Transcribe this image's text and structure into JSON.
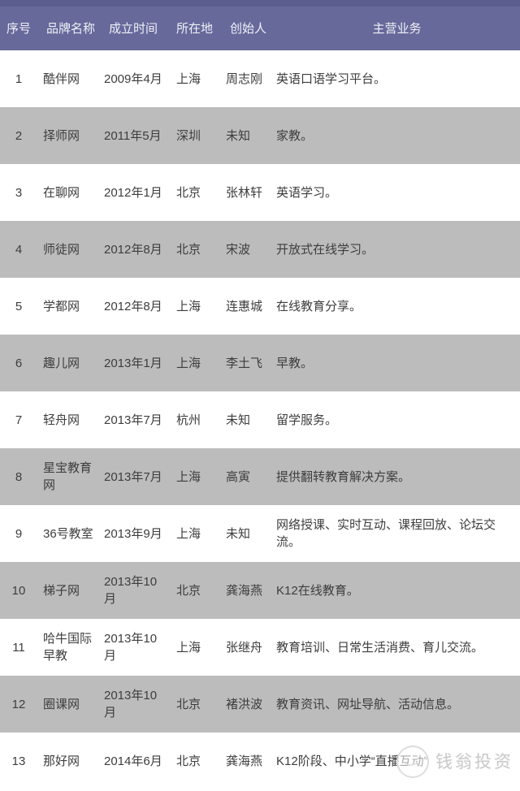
{
  "table": {
    "columns": [
      {
        "key": "index",
        "label": "序号"
      },
      {
        "key": "brand",
        "label": "品牌名称"
      },
      {
        "key": "founded",
        "label": "成立时间"
      },
      {
        "key": "location",
        "label": "所在地"
      },
      {
        "key": "founder",
        "label": "创始人"
      },
      {
        "key": "business",
        "label": "主营业务"
      }
    ],
    "rows": [
      {
        "index": "1",
        "brand": "酷伴网",
        "founded": "2009年4月",
        "location": "上海",
        "founder": "周志刚",
        "business": "英语口语学习平台。"
      },
      {
        "index": "2",
        "brand": "择师网",
        "founded": "2011年5月",
        "location": "深圳",
        "founder": "未知",
        "business": "家教。"
      },
      {
        "index": "3",
        "brand": "在聊网",
        "founded": "2012年1月",
        "location": "北京",
        "founder": "张林轩",
        "business": "英语学习。"
      },
      {
        "index": "4",
        "brand": "师徒网",
        "founded": "2012年8月",
        "location": "北京",
        "founder": "宋波",
        "business": "开放式在线学习。"
      },
      {
        "index": "5",
        "brand": "学都网",
        "founded": "2012年8月",
        "location": "上海",
        "founder": "连惠城",
        "business": "在线教育分享。"
      },
      {
        "index": "6",
        "brand": "趣儿网",
        "founded": "2013年1月",
        "location": "上海",
        "founder": "李土飞",
        "business": "早教。"
      },
      {
        "index": "7",
        "brand": "轻舟网",
        "founded": "2013年7月",
        "location": "杭州",
        "founder": "未知",
        "business": "留学服务。"
      },
      {
        "index": "8",
        "brand": "星宝教育网",
        "founded": "2013年7月",
        "location": "上海",
        "founder": "高寅",
        "business": "提供翻转教育解决方案。"
      },
      {
        "index": "9",
        "brand": "36号教室",
        "founded": "2013年9月",
        "location": "上海",
        "founder": "未知",
        "business": "网络授课、实时互动、课程回放、论坛交流。"
      },
      {
        "index": "10",
        "brand": "梯子网",
        "founded": "2013年10月",
        "location": "北京",
        "founder": "龚海燕",
        "business": "K12在线教育。"
      },
      {
        "index": "11",
        "brand": "哈牛国际早教",
        "founded": "2013年10月",
        "location": "上海",
        "founder": "张继舟",
        "business": "教育培训、日常生活消费、育儿交流。"
      },
      {
        "index": "12",
        "brand": "圈课网",
        "founded": "2013年10月",
        "location": "北京",
        "founder": "褚洪波",
        "business": "教育资讯、网址导航、活动信息。"
      },
      {
        "index": "13",
        "brand": "那好网",
        "founded": "2014年6月",
        "location": "北京",
        "founder": "龚海燕",
        "business": "K12阶段、中小学“直播互动”"
      }
    ]
  },
  "watermark": {
    "text": "钱翁投资",
    "icon": "seal-icon"
  },
  "colors": {
    "header_bg": "#67699b",
    "header_top_strip": "#5b5d8e",
    "header_text": "#f0f1f7",
    "row_bg": "#ffffff",
    "row_alt_bg": "#bcbcbc",
    "body_text": "#3d3d3d",
    "watermark_text": "#cbcbcb"
  }
}
